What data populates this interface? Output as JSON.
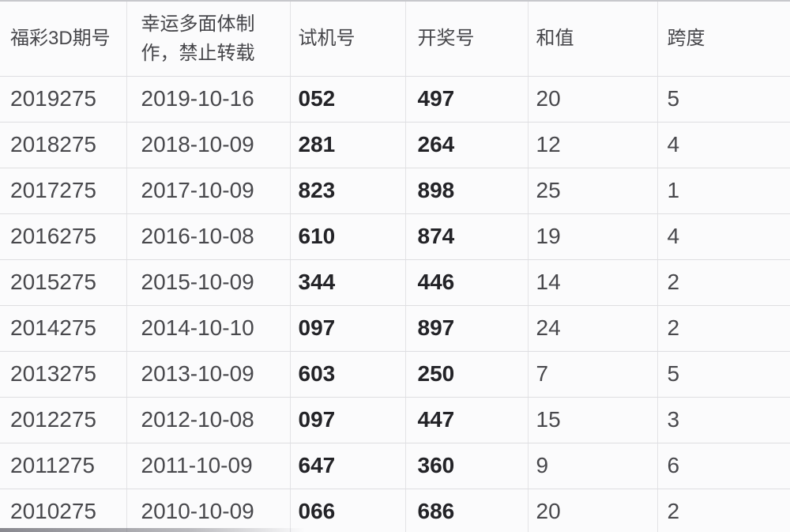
{
  "table": {
    "columns": [
      {
        "key": "issue",
        "label": "福彩3D期号"
      },
      {
        "key": "date",
        "label": "幸运多面体制作，禁止转载"
      },
      {
        "key": "test_number",
        "label": "试机号"
      },
      {
        "key": "winning_number",
        "label": "开奖号"
      },
      {
        "key": "sum_value",
        "label": "和值"
      },
      {
        "key": "span_value",
        "label": "跨度"
      }
    ],
    "rows": [
      [
        "2019275",
        "2019-10-16",
        "052",
        "497",
        "20",
        "5"
      ],
      [
        "2018275",
        "2018-10-09",
        "281",
        "264",
        "12",
        "4"
      ],
      [
        "2017275",
        "2017-10-09",
        "823",
        "898",
        "25",
        "1"
      ],
      [
        "2016275",
        "2016-10-08",
        "610",
        "874",
        "19",
        "4"
      ],
      [
        "2015275",
        "2015-10-09",
        "344",
        "446",
        "14",
        "2"
      ],
      [
        "2014275",
        "2014-10-10",
        "097",
        "897",
        "24",
        "2"
      ],
      [
        "2013275",
        "2013-10-09",
        "603",
        "250",
        "7",
        "5"
      ],
      [
        "2012275",
        "2012-10-08",
        "097",
        "447",
        "15",
        "3"
      ],
      [
        "2011275",
        "2011-10-09",
        "647",
        "360",
        "9",
        "6"
      ],
      [
        "2010275",
        "2010-10-09",
        "066",
        "686",
        "20",
        "2"
      ]
    ]
  },
  "colors": {
    "background": "#fbfbfc",
    "border_vertical": "#e3e3e6",
    "border_horizontal": "#dedee1",
    "top_edge": "#c7c8cc",
    "text_regular": "#48484c",
    "text_bold": "#232327"
  }
}
